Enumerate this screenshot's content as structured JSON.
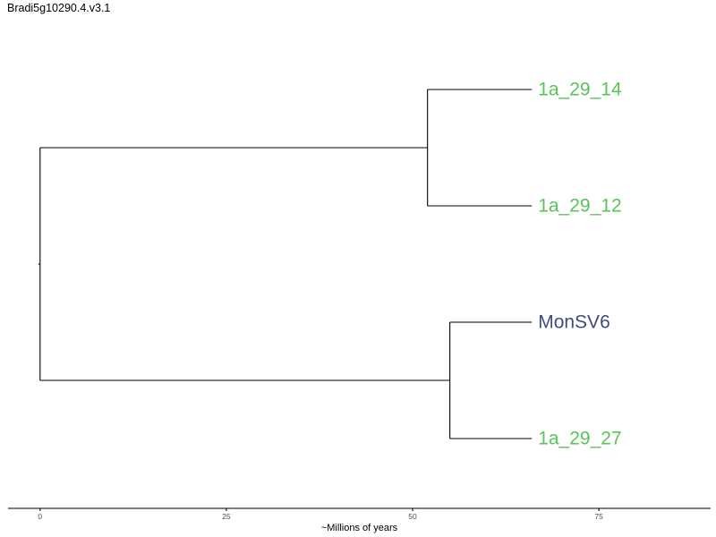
{
  "header": {
    "title": "Bradi5g10290.4.v3.1"
  },
  "colors": {
    "branch": "#000000",
    "green_group": "#5ac35a",
    "blue_group": "#3a4f7e"
  },
  "chart_data": {
    "type": "dendrogram",
    "xlabel": "~Millions of years",
    "xlim": [
      -4.3,
      90
    ],
    "xticks": [
      0,
      25,
      50,
      75
    ],
    "xtick_labels": [
      "0",
      "25",
      "50",
      "75"
    ],
    "tips": [
      {
        "name": "1a_29_14",
        "order": 1,
        "color": "#5ac35a"
      },
      {
        "name": "1a_29_12",
        "order": 2,
        "color": "#5ac35a"
      },
      {
        "name": "MonSV6",
        "order": 3,
        "color": "#3a4f7e"
      },
      {
        "name": "1a_29_27",
        "order": 4,
        "color": "#5ac35a"
      }
    ],
    "tip_age": 66,
    "clades": [
      {
        "children": [
          "1a_29_14",
          "1a_29_12"
        ],
        "node_x": 52
      },
      {
        "children": [
          "MonSV6",
          "1a_29_27"
        ],
        "node_x": 55
      }
    ],
    "root_x": 0
  }
}
